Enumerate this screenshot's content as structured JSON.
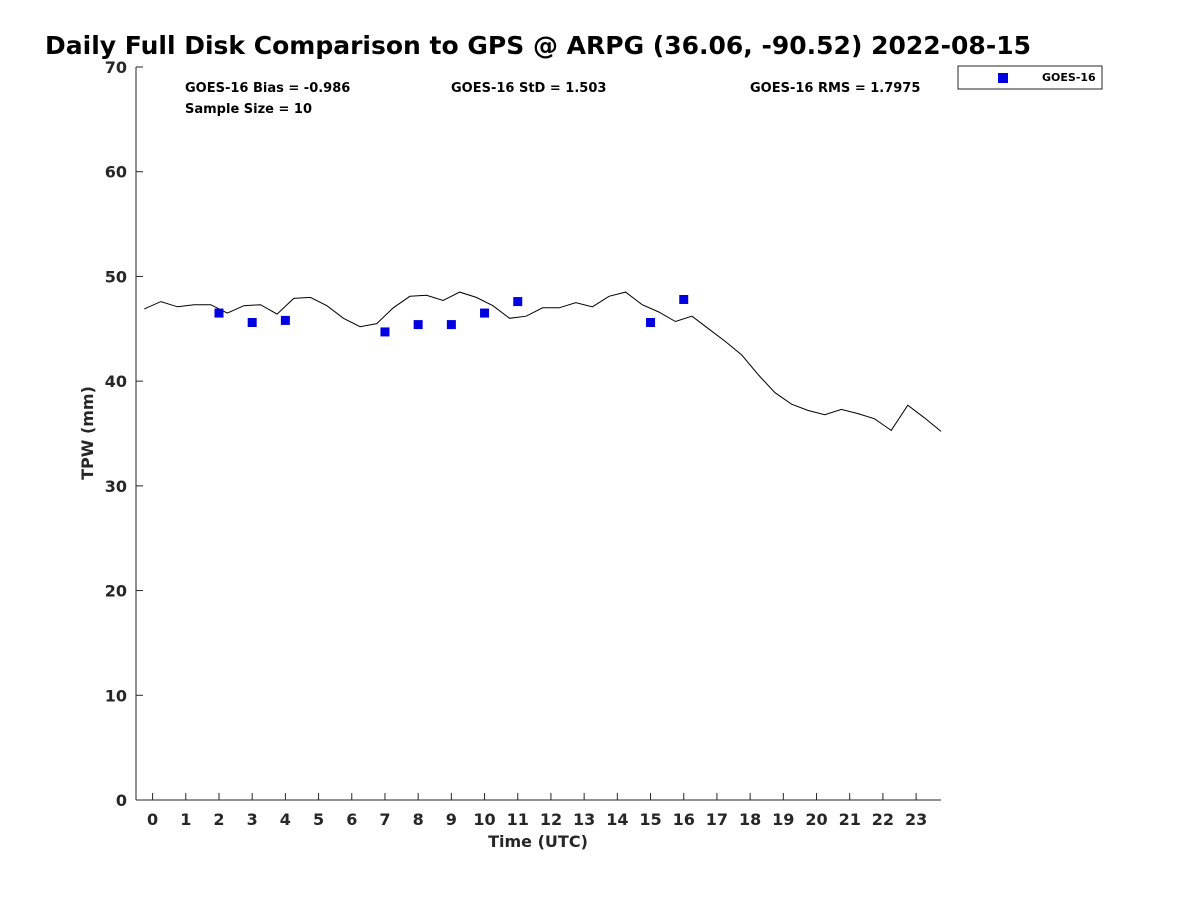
{
  "chart_data": {
    "type": "line",
    "title": "Daily Full Disk Comparison to GPS @ ARPG (36.06, -90.52) 2022-08-15",
    "xlabel": "Time (UTC)",
    "ylabel": "TPW (mm)",
    "xlim": [
      -0.5,
      23.75
    ],
    "ylim": [
      0,
      70
    ],
    "x_ticks": [
      0,
      1,
      2,
      3,
      4,
      5,
      6,
      7,
      8,
      9,
      10,
      11,
      12,
      13,
      14,
      15,
      16,
      17,
      18,
      19,
      20,
      21,
      22,
      23
    ],
    "x_tick_labels": [
      "0",
      "1",
      "2",
      "3",
      "4",
      "5",
      "6",
      "7",
      "8",
      "9",
      "10",
      "11",
      "12",
      "13",
      "14",
      "15",
      "16",
      "17",
      "18",
      "19",
      "20",
      "21",
      "22",
      "23"
    ],
    "y_ticks": [
      0,
      10,
      20,
      30,
      40,
      50,
      60,
      70
    ],
    "y_tick_labels": [
      "0",
      "10",
      "20",
      "30",
      "40",
      "50",
      "60",
      "70"
    ],
    "grid": false,
    "legend_position": "top-right, outside plot",
    "stats": {
      "bias": "GOES-16 Bias = -0.986",
      "std": "GOES-16 StD = 1.503",
      "rms": "GOES-16 RMS = 1.7975",
      "sample_size": "Sample Size = 10"
    },
    "series": [
      {
        "kind": "line",
        "color": "#000000",
        "x": [
          -0.25,
          0.25,
          0.75,
          1.25,
          1.75,
          2.25,
          2.75,
          3.25,
          3.75,
          4.25,
          4.75,
          5.25,
          5.75,
          6.25,
          6.75,
          7.25,
          7.75,
          8.25,
          8.75,
          9.25,
          9.75,
          10.25,
          10.75,
          11.25,
          11.75,
          12.25,
          12.75,
          13.25,
          13.75,
          14.25,
          14.75,
          15.25,
          15.75,
          16.25,
          16.75,
          17.25,
          17.75,
          18.25,
          18.75,
          19.25,
          19.75,
          20.25,
          20.75,
          21.25,
          21.75,
          22.25,
          22.75,
          23.25,
          23.75
        ],
        "values": [
          46.9,
          47.6,
          47.1,
          47.3,
          47.3,
          46.5,
          47.2,
          47.3,
          46.4,
          47.9,
          48.0,
          47.2,
          46.0,
          45.2,
          45.5,
          47.0,
          48.1,
          48.2,
          47.7,
          48.5,
          48.0,
          47.2,
          46.0,
          46.2,
          47.0,
          47.0,
          47.5,
          47.1,
          48.1,
          48.5,
          47.3,
          46.6,
          45.7,
          46.2,
          45.0,
          43.8,
          42.5,
          40.6,
          38.9,
          37.8,
          37.2,
          36.8,
          37.3,
          36.9,
          36.4,
          35.3,
          37.7,
          36.5,
          35.2
        ]
      },
      {
        "name": "GOES-16",
        "kind": "scatter",
        "color": "#0000e0",
        "x": [
          2,
          3,
          4,
          7,
          8,
          9,
          10,
          11,
          15,
          16
        ],
        "values": [
          46.5,
          45.6,
          45.8,
          44.7,
          45.4,
          45.4,
          46.5,
          47.6,
          45.6,
          47.8
        ]
      }
    ]
  }
}
